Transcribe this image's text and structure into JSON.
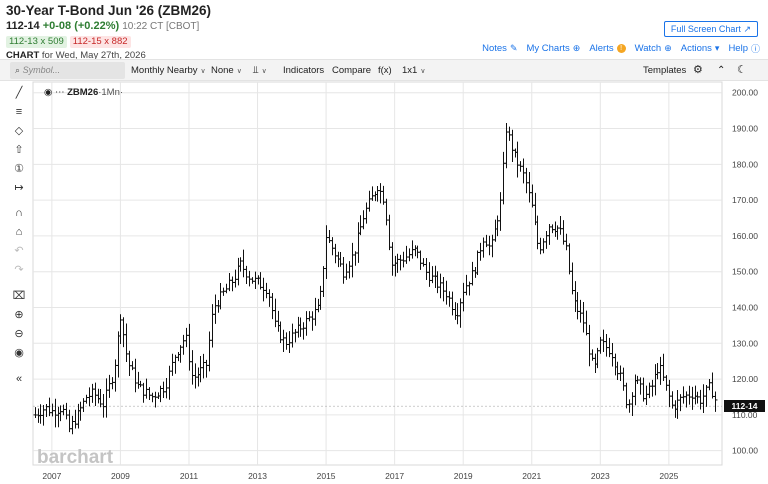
{
  "header": {
    "title": "30-Year T-Bond Jun '26 (ZBM26)",
    "last": "112-14",
    "change": "+0-08 (+0.22%)",
    "time": "10:22 CT [CBOT]",
    "bid": "112-13 x 509",
    "ask": "112-15 x 882",
    "chart_word": "CHART",
    "chart_date": "for Wed, May 27th, 2026"
  },
  "fullscreen_label": "Full Screen Chart",
  "links": {
    "notes": "Notes",
    "my_charts": "My Charts",
    "alerts": "Alerts",
    "watch": "Watch",
    "actions": "Actions",
    "help": "Help"
  },
  "toolbar": {
    "symbol_placeholder": "Symbol...",
    "aggregation": "Monthly Nearby",
    "overlay": "None",
    "indicators": "Indicators",
    "compare": "Compare",
    "fx": "f(x)",
    "layout": "1x1",
    "templates": "Templates"
  },
  "icons": {
    "search": "search-icon",
    "gear": "gear-icon",
    "moon": "moon-icon",
    "collapse": "chevron-up-double-icon",
    "eye": "eye-icon"
  },
  "colors": {
    "accent": "#1a73e8",
    "up": "#2e7d32",
    "down": "#c62828",
    "alert": "#f5a623"
  },
  "chart_label": {
    "symbol": "ZBM26",
    "period": "·1Mn·"
  },
  "watermark": "barchart",
  "last_price_badge": "112-14",
  "chart_data": {
    "type": "ohlc",
    "frequency": "monthly",
    "symbol": "ZBM26",
    "y_ticks": [
      100,
      110,
      120,
      130,
      140,
      150,
      160,
      170,
      180,
      190,
      200
    ],
    "y_tick_labels": [
      "100.00",
      "110.00",
      "120.00",
      "130.00",
      "140.00",
      "150.00",
      "160.00",
      "170.00",
      "180.00",
      "190.00",
      "200.00"
    ],
    "x_ticks": [
      "2007",
      "2009",
      "2011",
      "2013",
      "2015",
      "2017",
      "2019",
      "2021",
      "2023",
      "2025"
    ],
    "ylim": [
      96,
      203
    ],
    "xlim": [
      2006.45,
      2026.55
    ],
    "last": 112.44,
    "grid": true,
    "close_anchors": [
      [
        2006.5,
        110
      ],
      [
        2006.8,
        112
      ],
      [
        2007.0,
        111
      ],
      [
        2007.3,
        112
      ],
      [
        2007.5,
        106
      ],
      [
        2007.75,
        110
      ],
      [
        2008.0,
        115
      ],
      [
        2008.2,
        116
      ],
      [
        2008.5,
        113
      ],
      [
        2008.8,
        122
      ],
      [
        2009.0,
        138
      ],
      [
        2009.2,
        125
      ],
      [
        2009.5,
        118
      ],
      [
        2009.9,
        115
      ],
      [
        2010.3,
        118
      ],
      [
        2010.6,
        127
      ],
      [
        2010.9,
        132
      ],
      [
        2011.1,
        120
      ],
      [
        2011.5,
        124
      ],
      [
        2011.7,
        140
      ],
      [
        2012.0,
        144
      ],
      [
        2012.3,
        148
      ],
      [
        2012.5,
        152
      ],
      [
        2012.8,
        148
      ],
      [
        2013.0,
        147
      ],
      [
        2013.3,
        145
      ],
      [
        2013.5,
        135
      ],
      [
        2013.8,
        130
      ],
      [
        2014.0,
        132
      ],
      [
        2014.4,
        136
      ],
      [
        2014.8,
        140
      ],
      [
        2015.0,
        160
      ],
      [
        2015.2,
        156
      ],
      [
        2015.5,
        150
      ],
      [
        2015.8,
        155
      ],
      [
        2016.1,
        166
      ],
      [
        2016.5,
        174
      ],
      [
        2016.7,
        170
      ],
      [
        2016.9,
        152
      ],
      [
        2017.3,
        154
      ],
      [
        2017.6,
        156
      ],
      [
        2017.9,
        150
      ],
      [
        2018.1,
        148
      ],
      [
        2018.5,
        144
      ],
      [
        2018.8,
        138
      ],
      [
        2019.0,
        145
      ],
      [
        2019.3,
        150
      ],
      [
        2019.6,
        160
      ],
      [
        2019.8,
        156
      ],
      [
        2020.1,
        170
      ],
      [
        2020.25,
        190
      ],
      [
        2020.5,
        182
      ],
      [
        2020.8,
        176
      ],
      [
        2021.0,
        168
      ],
      [
        2021.2,
        156
      ],
      [
        2021.5,
        163
      ],
      [
        2021.8,
        162
      ],
      [
        2022.0,
        156
      ],
      [
        2022.2,
        142
      ],
      [
        2022.5,
        136
      ],
      [
        2022.8,
        122
      ],
      [
        2023.0,
        130
      ],
      [
        2023.3,
        128
      ],
      [
        2023.6,
        120
      ],
      [
        2023.8,
        112
      ],
      [
        2024.0,
        120
      ],
      [
        2024.3,
        115
      ],
      [
        2024.5,
        118
      ],
      [
        2024.7,
        124
      ],
      [
        2024.9,
        118
      ],
      [
        2025.1,
        112
      ],
      [
        2025.4,
        115
      ],
      [
        2025.7,
        116
      ],
      [
        2025.9,
        114
      ],
      [
        2026.2,
        118
      ],
      [
        2026.4,
        112.4
      ]
    ]
  }
}
